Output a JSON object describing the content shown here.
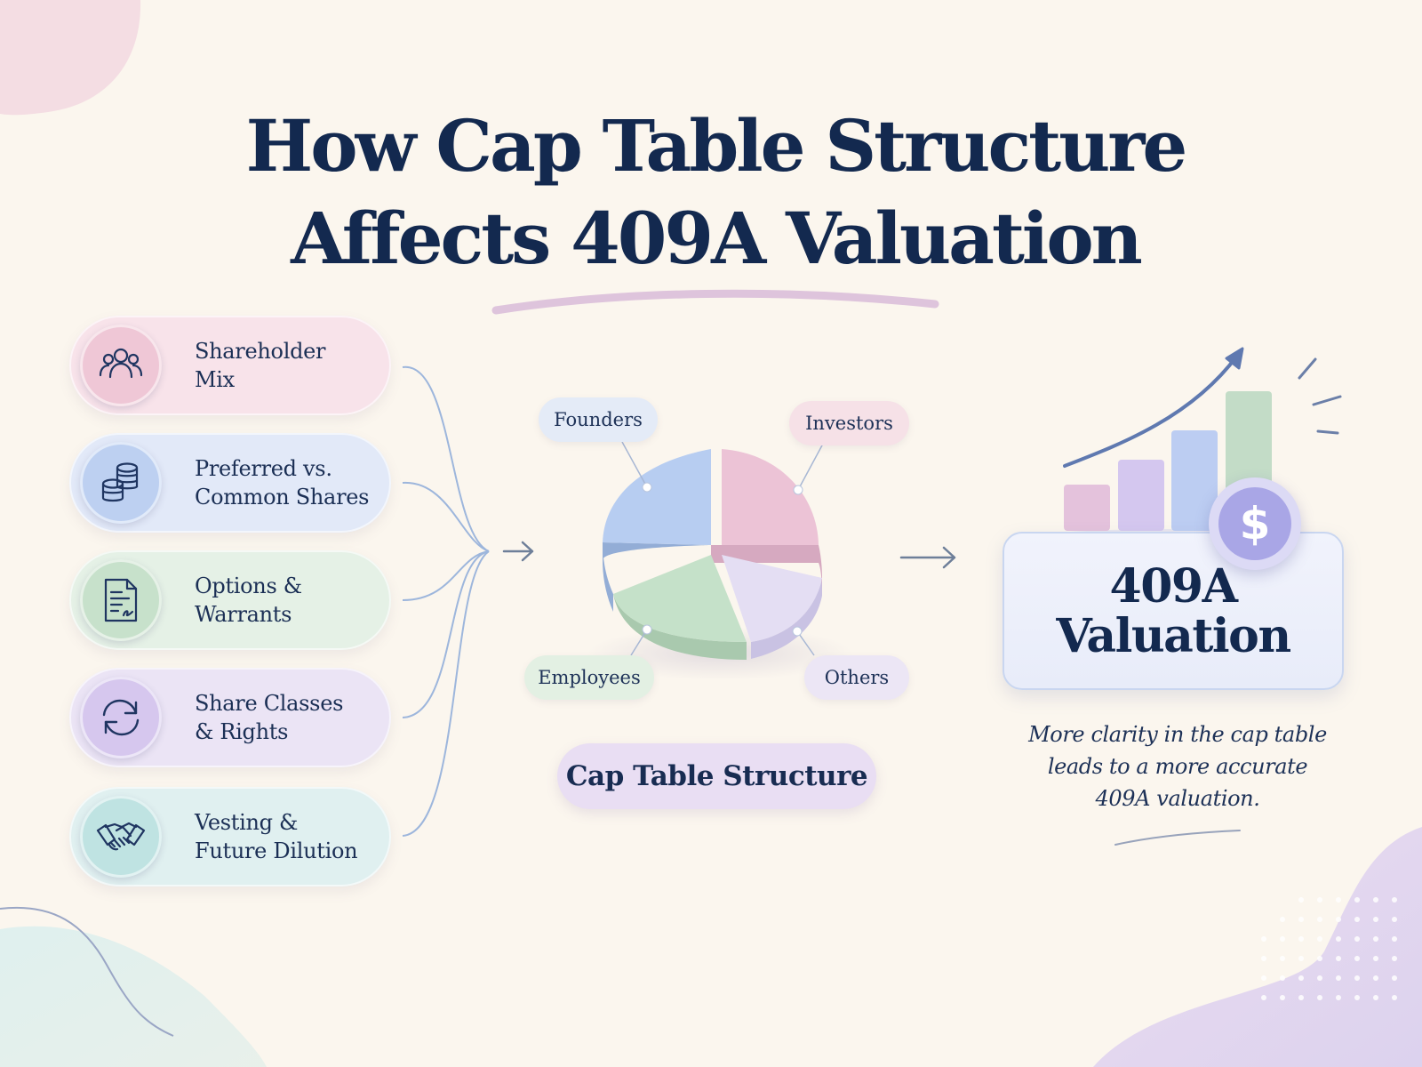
{
  "title": {
    "line1": "How Cap Table Structure",
    "line2": "Affects 409A Valuation"
  },
  "factors": [
    {
      "icon": "people-group-icon",
      "line1": "Shareholder",
      "line2": "Mix"
    },
    {
      "icon": "coin-stack-icon",
      "line1": "Preferred vs.",
      "line2": "Common Shares"
    },
    {
      "icon": "signed-document-icon",
      "line1": "Options &",
      "line2": "Warrants"
    },
    {
      "icon": "refresh-cycle-icon",
      "line1": "Share Classes",
      "line2": "& Rights"
    },
    {
      "icon": "handshake-icon",
      "line1": "Vesting &",
      "line2": "Future Dilution"
    }
  ],
  "cap_table": {
    "slices": [
      {
        "label": "Founders",
        "color": "#b7cdf1"
      },
      {
        "label": "Investors",
        "color": "#ecc3d6"
      },
      {
        "label": "Others",
        "color": "#e4def3"
      },
      {
        "label": "Employees",
        "color": "#c5e1c9"
      }
    ],
    "caption": "Cap Table Structure"
  },
  "valuation": {
    "line1": "409A",
    "line2": "Valuation",
    "coin_symbol": "$",
    "bar_colors": [
      "#e4c2dc",
      "#d4c7ef",
      "#bccdf2",
      "#c3dcc7"
    ]
  },
  "note": {
    "line1": "More clarity in the cap table",
    "line2": "leads to a more accurate",
    "line3": "409A valuation."
  },
  "colors": {
    "navy": "#13294f",
    "connector": "#9db6dc",
    "arrow": "#6e7f99"
  }
}
